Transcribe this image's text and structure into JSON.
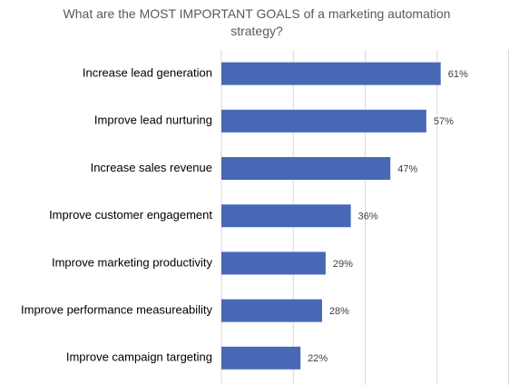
{
  "chart_data": {
    "type": "bar",
    "orientation": "horizontal",
    "title": "What are the MOST IMPORTANT GOALS of a marketing automation strategy?",
    "categories": [
      "Increase lead generation",
      "Improve lead nurturing",
      "Increase sales revenue",
      "Improve customer engagement",
      "Improve marketing productivity",
      "Improve performance measureability",
      "Improve campaign targeting"
    ],
    "values": [
      61,
      57,
      47,
      36,
      29,
      28,
      22
    ],
    "value_labels": [
      "61%",
      "57%",
      "47%",
      "36%",
      "29%",
      "28%",
      "22%"
    ],
    "color": "#4769b5",
    "xlim": [
      0,
      80
    ],
    "xticks": [
      0,
      20,
      40,
      60,
      80
    ],
    "grid": true
  }
}
